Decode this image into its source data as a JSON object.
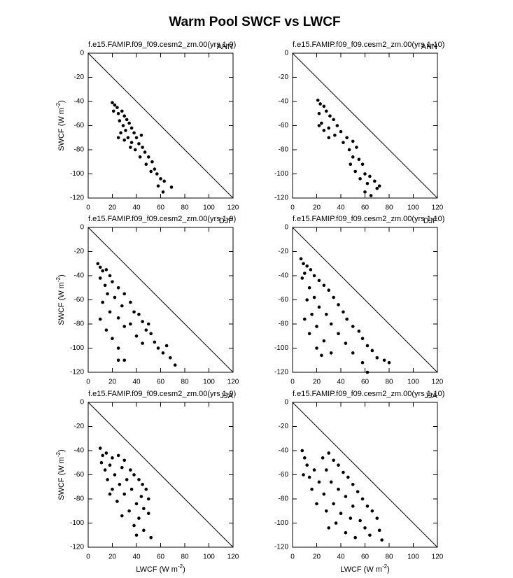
{
  "title": "Warm Pool SWCF vs LWCF",
  "chart_data": [
    {
      "type": "scatter",
      "subtitle": "f.e15.FAMIP.f09_f09.cesm2_zm.00(yrs 1-9)",
      "season": "ANN",
      "ylabel": {
        "text": "SWCF (W m",
        "sup": "-2",
        "close": ")"
      },
      "xlim": [
        0,
        120
      ],
      "ylim": [
        -120,
        0
      ],
      "xticks": [
        0,
        20,
        40,
        60,
        80,
        100,
        120
      ],
      "yticks": [
        -120,
        -100,
        -80,
        -60,
        -40,
        -20,
        0
      ],
      "color": "#000000",
      "x": [
        20,
        22,
        24,
        21,
        25,
        28,
        30,
        26,
        32,
        29,
        34,
        31,
        36,
        27,
        38,
        33,
        40,
        36,
        42,
        30,
        45,
        39,
        47,
        43,
        50,
        48,
        53,
        55,
        57,
        52,
        60,
        58,
        63,
        62,
        69,
        25,
        35,
        44
      ],
      "y": [
        -41,
        -43,
        -45,
        -48,
        -50,
        -48,
        -52,
        -56,
        -55,
        -60,
        -58,
        -64,
        -62,
        -66,
        -66,
        -70,
        -70,
        -74,
        -75,
        -72,
        -78,
        -80,
        -82,
        -86,
        -86,
        -92,
        -90,
        -96,
        -100,
        -98,
        -104,
        -110,
        -106,
        -115,
        -111,
        -70,
        -78,
        -68
      ]
    },
    {
      "type": "scatter",
      "subtitle": "f.e15.FAMIP.f09_f09.cesm2_zm.00(yrs 1-10)",
      "season": "ANN",
      "xlim": [
        0,
        120
      ],
      "ylim": [
        -120,
        0
      ],
      "xticks": [
        0,
        20,
        40,
        60,
        80,
        100,
        120
      ],
      "yticks": [
        -120,
        -100,
        -80,
        -60,
        -40,
        -20,
        0
      ],
      "color": "#000000",
      "x": [
        21,
        23,
        26,
        22,
        28,
        31,
        24,
        34,
        30,
        37,
        26,
        40,
        35,
        45,
        42,
        50,
        47,
        53,
        50,
        55,
        48,
        58,
        52,
        60,
        56,
        64,
        62,
        68,
        72,
        60,
        65,
        70,
        30,
        22
      ],
      "y": [
        -39,
        -42,
        -44,
        -50,
        -48,
        -52,
        -58,
        -55,
        -62,
        -60,
        -64,
        -65,
        -68,
        -70,
        -74,
        -73,
        -80,
        -78,
        -86,
        -88,
        -92,
        -92,
        -98,
        -100,
        -104,
        -102,
        -108,
        -106,
        -110,
        -115,
        -118,
        -112,
        -70,
        -60
      ]
    },
    {
      "type": "scatter",
      "subtitle": "f.e15.FAMIP.f09_f09.cesm2_zm.00(yrs 1-9)",
      "season": "DJF",
      "ylabel": {
        "text": "SWCF (W m",
        "sup": "-2",
        "close": ")"
      },
      "xlim": [
        0,
        120
      ],
      "ylim": [
        -120,
        0
      ],
      "xticks": [
        0,
        20,
        40,
        60,
        80,
        100,
        120
      ],
      "yticks": [
        -120,
        -100,
        -80,
        -60,
        -40,
        -20,
        0
      ],
      "color": "#000000",
      "x": [
        8,
        10,
        12,
        15,
        18,
        10,
        14,
        20,
        25,
        16,
        22,
        30,
        12,
        28,
        35,
        18,
        38,
        42,
        25,
        10,
        45,
        15,
        30,
        48,
        20,
        52,
        40,
        55,
        25,
        58,
        45,
        62,
        30,
        25,
        68,
        72,
        65,
        50,
        35
      ],
      "y": [
        -30,
        -33,
        -36,
        -35,
        -40,
        -42,
        -48,
        -45,
        -50,
        -55,
        -58,
        -55,
        -62,
        -65,
        -62,
        -70,
        -70,
        -72,
        -75,
        -76,
        -78,
        -85,
        -82,
        -85,
        -92,
        -88,
        -90,
        -95,
        -100,
        -100,
        -96,
        -104,
        -110,
        -110,
        -108,
        -114,
        -98,
        -80,
        -80
      ]
    },
    {
      "type": "scatter",
      "subtitle": "f.e15.FAMIP.f09_f09.cesm2_zm.00(yrs 1-10)",
      "season": "DJF",
      "xlim": [
        0,
        120
      ],
      "ylim": [
        -120,
        0
      ],
      "xticks": [
        0,
        20,
        40,
        60,
        80,
        100,
        120
      ],
      "yticks": [
        -120,
        -100,
        -80,
        -60,
        -40,
        -20,
        0
      ],
      "color": "#000000",
      "x": [
        7,
        9,
        12,
        15,
        10,
        18,
        8,
        22,
        14,
        26,
        30,
        18,
        12,
        34,
        22,
        38,
        16,
        28,
        42,
        10,
        45,
        32,
        20,
        50,
        14,
        38,
        55,
        26,
        58,
        44,
        62,
        20,
        32,
        66,
        50,
        70,
        76,
        58,
        62,
        80,
        24
      ],
      "y": [
        -26,
        -30,
        -32,
        -35,
        -38,
        -40,
        -42,
        -44,
        -50,
        -48,
        -52,
        -58,
        -60,
        -58,
        -66,
        -64,
        -72,
        -72,
        -70,
        -76,
        -76,
        -80,
        -82,
        -82,
        -88,
        -88,
        -86,
        -94,
        -92,
        -96,
        -98,
        -100,
        -104,
        -102,
        -104,
        -108,
        -110,
        -112,
        -120,
        -112,
        -106
      ]
    },
    {
      "type": "scatter",
      "subtitle": "f.e15.FAMIP.f09_f09.cesm2_zm.00(yrs 1-9)",
      "season": "JJA",
      "ylabel": {
        "text": "SWCF (W m",
        "sup": "-2",
        "close": ")"
      },
      "xlabel": {
        "text": "LWCF (W m",
        "sup": "-2",
        "close": ")"
      },
      "xlim": [
        0,
        120
      ],
      "ylim": [
        -120,
        0
      ],
      "xticks": [
        0,
        20,
        40,
        60,
        80,
        100,
        120
      ],
      "yticks": [
        -120,
        -100,
        -80,
        -60,
        -40,
        -20,
        0
      ],
      "color": "#000000",
      "x": [
        10,
        12,
        15,
        20,
        11,
        25,
        18,
        30,
        14,
        28,
        35,
        22,
        38,
        16,
        32,
        42,
        26,
        45,
        20,
        36,
        48,
        30,
        44,
        50,
        24,
        40,
        46,
        34,
        50,
        28,
        42,
        38,
        46,
        52,
        40,
        18
      ],
      "y": [
        -38,
        -44,
        -42,
        -46,
        -50,
        -44,
        -52,
        -48,
        -56,
        -54,
        -56,
        -60,
        -60,
        -64,
        -64,
        -64,
        -68,
        -68,
        -72,
        -72,
        -72,
        -76,
        -78,
        -80,
        -82,
        -84,
        -88,
        -90,
        -92,
        -94,
        -96,
        -102,
        -106,
        -112,
        -110,
        -76
      ]
    },
    {
      "type": "scatter",
      "subtitle": "f.e15.FAMIP.f09_f09.cesm2_zm.00(yrs 1-10)",
      "season": "JJA",
      "xlabel": {
        "text": "LWCF (W m",
        "sup": "-2",
        "close": ")"
      },
      "xlim": [
        0,
        120
      ],
      "ylim": [
        -120,
        0
      ],
      "xticks": [
        0,
        20,
        40,
        60,
        80,
        100,
        120
      ],
      "yticks": [
        -120,
        -100,
        -80,
        -60,
        -40,
        -20,
        0
      ],
      "color": "#000000",
      "x": [
        8,
        10,
        12,
        9,
        14,
        18,
        25,
        30,
        34,
        38,
        28,
        42,
        22,
        46,
        32,
        50,
        16,
        38,
        54,
        26,
        44,
        58,
        20,
        34,
        50,
        62,
        28,
        40,
        66,
        48,
        56,
        70,
        36,
        60,
        44,
        72,
        52,
        64,
        74,
        30
      ],
      "y": [
        -40,
        -46,
        -52,
        -60,
        -62,
        -56,
        -46,
        -42,
        -48,
        -52,
        -56,
        -58,
        -66,
        -62,
        -66,
        -68,
        -72,
        -72,
        -74,
        -76,
        -78,
        -80,
        -84,
        -84,
        -86,
        -86,
        -90,
        -92,
        -90,
        -96,
        -98,
        -96,
        -100,
        -104,
        -108,
        -106,
        -112,
        -110,
        -114,
        -104
      ]
    }
  ]
}
